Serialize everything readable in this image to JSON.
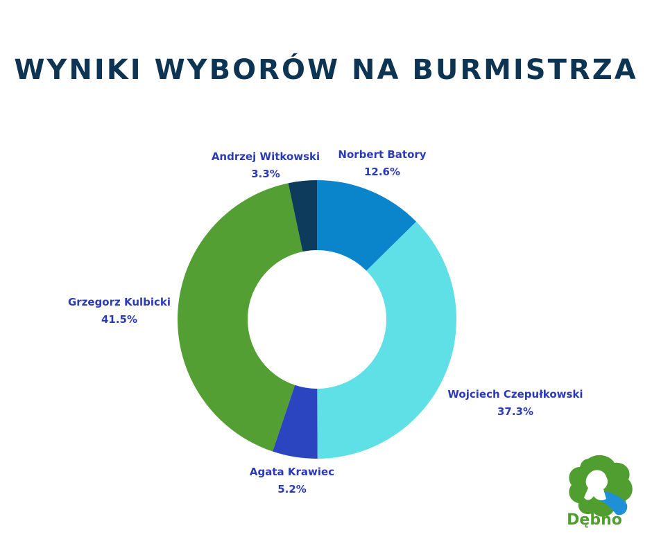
{
  "chart_data": {
    "type": "pie",
    "title": "WYNIKI WYBORÓW NA BURMISTRZA",
    "slices": [
      {
        "name": "Norbert Batory",
        "value": 12.6,
        "label": "12.6%",
        "color": "#0a85cc"
      },
      {
        "name": "Wojciech Czepułkowski",
        "value": 37.3,
        "label": "37.3%",
        "color": "#5fe0e6"
      },
      {
        "name": "Agata Krawiec",
        "value": 5.2,
        "label": "5.2%",
        "color": "#2b45c1"
      },
      {
        "name": "Grzegorz Kulbicki",
        "value": 41.5,
        "label": "41.5%",
        "color": "#539f33"
      },
      {
        "name": "Andrzej Witkowski",
        "value": 3.3,
        "label": "3.3%",
        "color": "#0d3b5c"
      }
    ],
    "donut": true
  },
  "logo": {
    "text": "Dębno"
  }
}
